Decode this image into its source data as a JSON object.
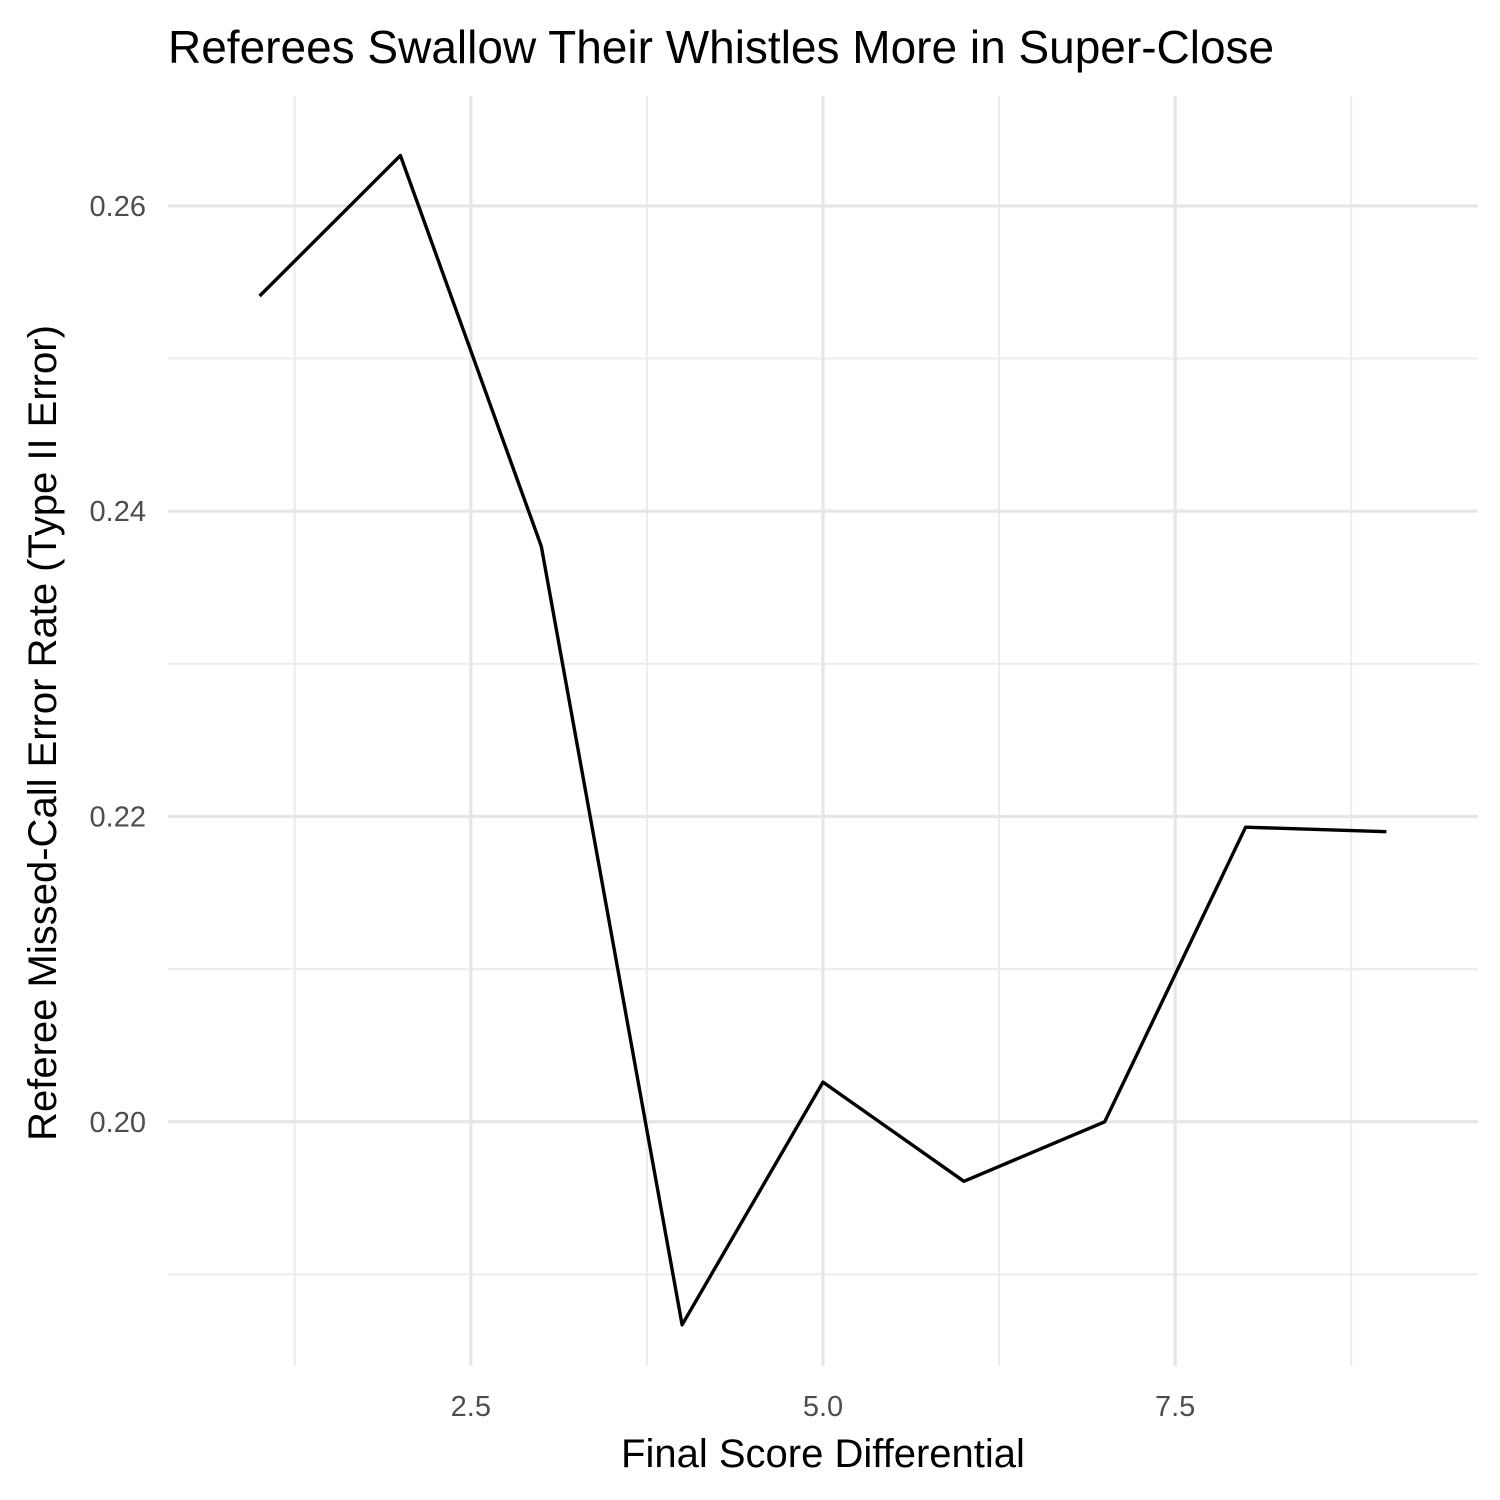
{
  "chart_data": {
    "type": "line",
    "title": "Referees Swallow Their Whistles More in Super-Close",
    "xlabel": "Final Score Differential",
    "ylabel": "Referee Missed-Call Error Rate (Type II Error)",
    "x": [
      1,
      2,
      3,
      4,
      5,
      6,
      7,
      8,
      9
    ],
    "series": [
      {
        "values": [
          0.2541,
          0.2633,
          0.2377,
          0.1867,
          0.2026,
          0.1961,
          0.2,
          0.2193,
          0.219
        ]
      }
    ],
    "xlim": [
      0.35,
      9.65
    ],
    "ylim": [
      0.184,
      0.2672
    ],
    "x_ticks": [
      2.5,
      5.0,
      7.5
    ],
    "x_tick_labels": [
      "2.5",
      "5.0",
      "7.5"
    ],
    "x_minor_ticks": [
      1.25,
      3.75,
      6.25,
      8.75
    ],
    "y_ticks": [
      0.2,
      0.22,
      0.24,
      0.26
    ],
    "y_tick_labels": [
      "0.20",
      "0.22",
      "0.24",
      "0.26"
    ],
    "y_minor_ticks": [
      0.19,
      0.21,
      0.23,
      0.25
    ],
    "grid": true,
    "line_color": "#000000",
    "grid_color": "#e6e6e6",
    "background": "#ffffff"
  }
}
